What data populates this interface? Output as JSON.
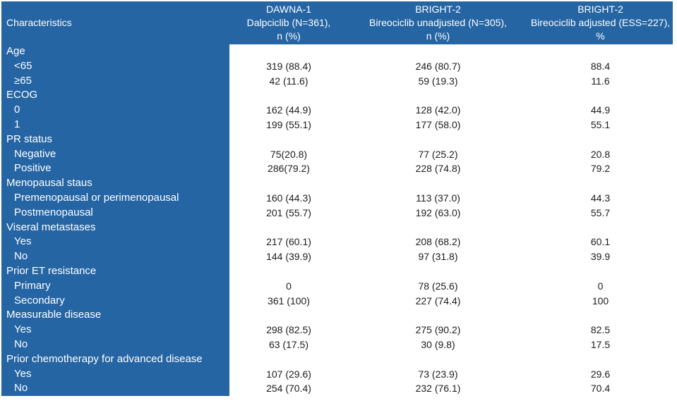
{
  "colors": {
    "table_blue": "#2565a4",
    "header_text": "#ffffff",
    "body_text": "#1c1c1c",
    "page_bg": "#ffffff"
  },
  "table": {
    "header": {
      "characteristics": "Characteristics",
      "columns": [
        {
          "lines": [
            "DAWNA-1",
            "Dalpciclib (N=361),",
            "n (%)"
          ]
        },
        {
          "lines": [
            "BRIGHT-2",
            "Bireociclib unadjusted (N=305),",
            "n (%)"
          ]
        },
        {
          "lines": [
            "BRIGHT-2",
            "Bireociclib adjusted (ESS=227),",
            "%"
          ]
        }
      ]
    },
    "rows": [
      {
        "label": "Age",
        "group": true,
        "values": [
          "",
          "",
          ""
        ]
      },
      {
        "label": "<65",
        "group": false,
        "values": [
          "319 (88.4)",
          "246 (80.7)",
          "88.4"
        ]
      },
      {
        "label": "≥65",
        "group": false,
        "values": [
          "42 (11.6)",
          "59 (19.3)",
          "11.6"
        ]
      },
      {
        "label": "ECOG",
        "group": true,
        "values": [
          "",
          "",
          ""
        ]
      },
      {
        "label": "0",
        "group": false,
        "values": [
          "162 (44.9)",
          "128 (42.0)",
          "44.9"
        ]
      },
      {
        "label": "1",
        "group": false,
        "values": [
          "199 (55.1)",
          "177 (58.0)",
          "55.1"
        ]
      },
      {
        "label": "PR status",
        "group": true,
        "values": [
          "",
          "",
          ""
        ]
      },
      {
        "label": "Negative",
        "group": false,
        "values": [
          "75(20.8)",
          "77 (25.2)",
          "20.8"
        ]
      },
      {
        "label": "Positive",
        "group": false,
        "values": [
          "286(79.2)",
          "228 (74.8)",
          "79.2"
        ]
      },
      {
        "label": "Menopausal staus",
        "group": true,
        "values": [
          "",
          "",
          ""
        ]
      },
      {
        "label": "Premenopausal or perimenopausal",
        "group": false,
        "values": [
          "160 (44.3)",
          "113 (37.0)",
          "44.3"
        ]
      },
      {
        "label": "Postmenopausal",
        "group": false,
        "values": [
          "201 (55.7)",
          "192 (63.0)",
          "55.7"
        ]
      },
      {
        "label": "Viseral metastases",
        "group": true,
        "values": [
          "",
          "",
          ""
        ]
      },
      {
        "label": "Yes",
        "group": false,
        "values": [
          "217 (60.1)",
          "208 (68.2)",
          "60.1"
        ]
      },
      {
        "label": "No",
        "group": false,
        "values": [
          "144 (39.9)",
          "97 (31.8)",
          "39.9"
        ]
      },
      {
        "label": "Prior ET resistance",
        "group": true,
        "values": [
          "",
          "",
          ""
        ]
      },
      {
        "label": "Primary",
        "group": false,
        "values": [
          "0",
          "78 (25.6)",
          "0"
        ]
      },
      {
        "label": "Secondary",
        "group": false,
        "values": [
          "361 (100)",
          "227 (74.4)",
          "100"
        ]
      },
      {
        "label": "Measurable disease",
        "group": true,
        "values": [
          "",
          "",
          ""
        ]
      },
      {
        "label": "Yes",
        "group": false,
        "values": [
          "298 (82.5)",
          "275 (90.2)",
          "82.5"
        ]
      },
      {
        "label": "No",
        "group": false,
        "values": [
          "63 (17.5)",
          "30 (9.8)",
          "17.5"
        ]
      },
      {
        "label": "Prior chemotherapy for advanced disease",
        "group": true,
        "values": [
          "",
          "",
          ""
        ]
      },
      {
        "label": "Yes",
        "group": false,
        "values": [
          "107 (29.6)",
          "73 (23.9)",
          "29.6"
        ]
      },
      {
        "label": "No",
        "group": false,
        "values": [
          "254 (70.4)",
          "232 (76.1)",
          "70.4"
        ]
      }
    ]
  }
}
